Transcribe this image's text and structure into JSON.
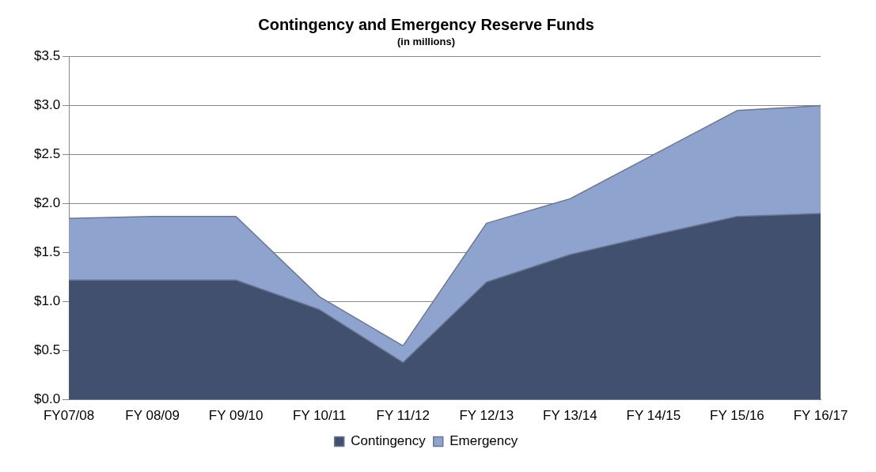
{
  "chart_data": {
    "type": "area",
    "title": "Contingency and Emergency Reserve Funds",
    "subtitle": "(in millions)",
    "categories": [
      "FY07/08",
      "FY 08/09",
      "FY 09/10",
      "FY 10/11",
      "FY 11/12",
      "FY 12/13",
      "FY 13/14",
      "FY 14/15",
      "FY 15/16",
      "FY 16/17"
    ],
    "stacked": true,
    "series": [
      {
        "name": "Contingency",
        "color": "#41506f",
        "values": [
          1.22,
          1.22,
          1.22,
          0.92,
          0.38,
          1.2,
          1.48,
          1.68,
          1.87,
          1.9
        ]
      },
      {
        "name": "Emergency",
        "color": "#8fa3cf",
        "values": [
          0.63,
          0.65,
          0.65,
          0.13,
          0.17,
          0.6,
          0.57,
          0.82,
          1.08,
          1.1
        ]
      }
    ],
    "ylim": [
      0,
      3.5
    ],
    "yticks": [
      {
        "value": 0,
        "label": "$0.0"
      },
      {
        "value": 0.5,
        "label": "$0.5"
      },
      {
        "value": 1,
        "label": "$1.0"
      },
      {
        "value": 1.5,
        "label": "$1.5"
      },
      {
        "value": 2,
        "label": "$2.0"
      },
      {
        "value": 2.5,
        "label": "$2.5"
      },
      {
        "value": 3,
        "label": "$3.0"
      },
      {
        "value": 3.5,
        "label": "$3.5"
      }
    ],
    "grid": "y",
    "legend": "bottom"
  }
}
